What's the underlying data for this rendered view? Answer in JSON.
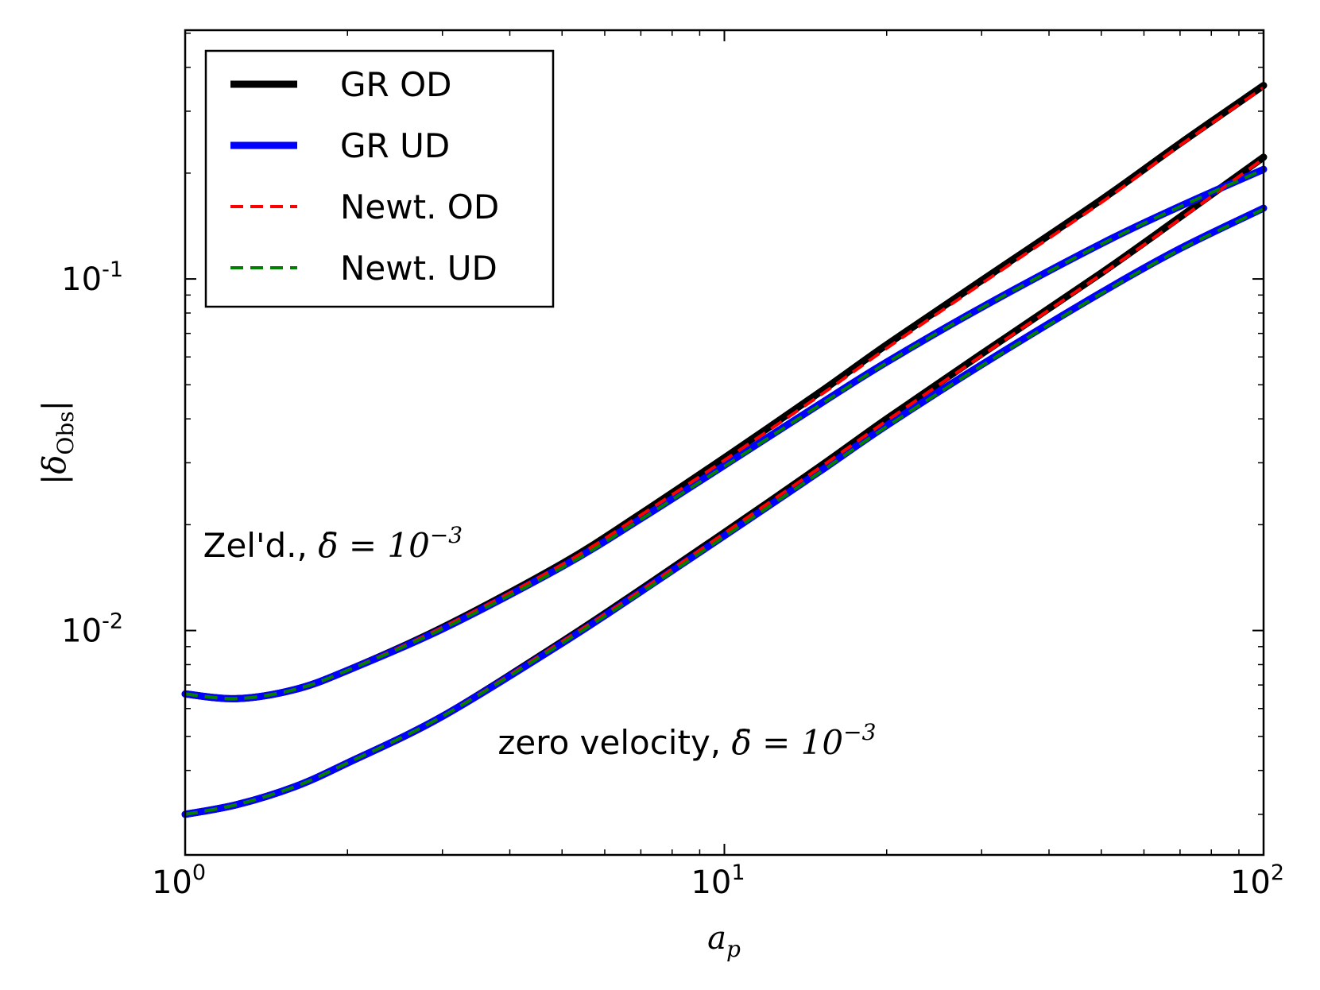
{
  "chart_data": {
    "type": "line",
    "xlabel": "a_p",
    "ylabel": "|δ_Obs|",
    "xscale": "log",
    "yscale": "log",
    "xlim": [
      1,
      100
    ],
    "ylim": [
      0.0023,
      0.51
    ],
    "x_ticks": [
      {
        "value": 1,
        "base": "10",
        "exp": "0"
      },
      {
        "value": 10,
        "base": "10",
        "exp": "1"
      },
      {
        "value": 100,
        "base": "10",
        "exp": "2"
      }
    ],
    "y_ticks": [
      {
        "value": 0.01,
        "base": "10",
        "exp": "-2"
      },
      {
        "value": 0.1,
        "base": "10",
        "exp": "-1"
      }
    ],
    "x": [
      1,
      1.25,
      1.6,
      2,
      3,
      5,
      7,
      10,
      15,
      20,
      30,
      50,
      70,
      100
    ],
    "series": [
      {
        "name": "GR OD",
        "group": "Zel'd.",
        "style": "solid",
        "color": "#000000",
        "values": [
          0.0066,
          0.0064,
          0.0068,
          0.0077,
          0.0102,
          0.0155,
          0.0215,
          0.031,
          0.0475,
          0.065,
          0.099,
          0.168,
          0.243,
          0.355
        ]
      },
      {
        "name": "GR UD",
        "group": "Zel'd.",
        "style": "solid",
        "color": "#0000ff",
        "values": [
          0.0066,
          0.0064,
          0.0068,
          0.0077,
          0.0101,
          0.0152,
          0.0208,
          0.0295,
          0.044,
          0.058,
          0.083,
          0.126,
          0.161,
          0.205
        ]
      },
      {
        "name": "Newt. OD",
        "group": "Zel'd.",
        "style": "dashed",
        "color": "#ff0000",
        "values": [
          0.0066,
          0.0064,
          0.0068,
          0.0077,
          0.0102,
          0.0154,
          0.0213,
          0.0305,
          0.0465,
          0.0635,
          0.097,
          0.165,
          0.24,
          0.35
        ]
      },
      {
        "name": "Newt. UD",
        "group": "Zel'd.",
        "style": "dashed",
        "color": "#008000",
        "values": [
          0.0066,
          0.0064,
          0.0068,
          0.0077,
          0.0101,
          0.0151,
          0.0207,
          0.0293,
          0.0437,
          0.0577,
          0.0827,
          0.1255,
          0.1605,
          0.2045
        ]
      },
      {
        "name": "GR OD",
        "group": "zero velocity",
        "style": "solid",
        "color": "#000000",
        "values": [
          0.003,
          0.0032,
          0.0036,
          0.0042,
          0.0057,
          0.0093,
          0.0131,
          0.019,
          0.0292,
          0.04,
          0.0612,
          0.104,
          0.15,
          0.222
        ]
      },
      {
        "name": "GR UD",
        "group": "zero velocity",
        "style": "solid",
        "color": "#0000ff",
        "values": [
          0.003,
          0.0032,
          0.0036,
          0.0042,
          0.0057,
          0.0092,
          0.0129,
          0.0186,
          0.0283,
          0.0383,
          0.057,
          0.0915,
          0.122,
          0.159
        ]
      },
      {
        "name": "Newt. OD",
        "group": "zero velocity",
        "style": "dashed",
        "color": "#ff0000",
        "values": [
          0.003,
          0.0032,
          0.0036,
          0.0042,
          0.0057,
          0.0093,
          0.013,
          0.0189,
          0.029,
          0.0395,
          0.0605,
          0.103,
          0.148,
          0.22
        ]
      },
      {
        "name": "Newt. UD",
        "group": "zero velocity",
        "style": "dashed",
        "color": "#008000",
        "values": [
          0.003,
          0.0032,
          0.0036,
          0.0042,
          0.0057,
          0.0092,
          0.0128,
          0.0185,
          0.0281,
          0.038,
          0.0566,
          0.0908,
          0.1212,
          0.158
        ]
      }
    ],
    "legend": {
      "position": "top-left",
      "entries": [
        {
          "label": "GR OD",
          "color": "#000000",
          "style": "solid"
        },
        {
          "label": "GR UD",
          "color": "#0000ff",
          "style": "solid"
        },
        {
          "label": "Newt. OD",
          "color": "#ff0000",
          "style": "dashed"
        },
        {
          "label": "Newt. UD",
          "color": "#008000",
          "style": "dashed"
        }
      ]
    },
    "annotations": [
      {
        "text": "Zel'd., ",
        "math": "δ̄ = 10",
        "exp": "−3",
        "x": 1.08,
        "y": 0.0162
      },
      {
        "text": "zero velocity, ",
        "math": "δ̄ = 10",
        "exp": "−3",
        "x": 3.8,
        "y": 0.00445
      }
    ]
  }
}
